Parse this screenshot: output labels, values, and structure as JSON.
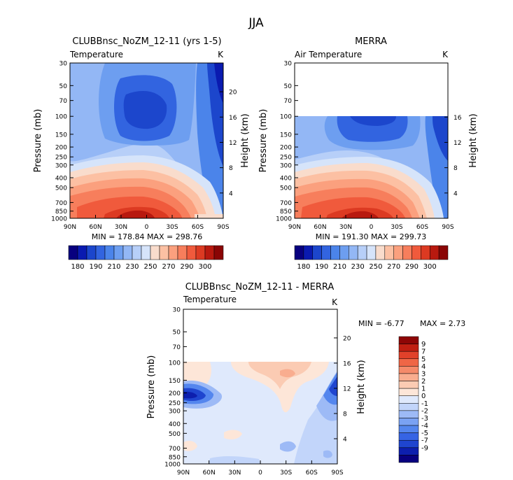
{
  "figure": {
    "title": "JJA"
  },
  "palette": {
    "abs": [
      "#08007f",
      "#0a1ab0",
      "#1c46cc",
      "#3264e0",
      "#4b84ea",
      "#6d9ef0",
      "#93b7f5",
      "#b7cff8",
      "#d6e4fa",
      "#f9dccc",
      "#fcc0a3",
      "#fba07e",
      "#f77e5c",
      "#f05a3c",
      "#dc3a22",
      "#b8190f",
      "#8a0505"
    ],
    "diff": [
      "#08007f",
      "#0d1fae",
      "#1f45cf",
      "#3664e4",
      "#5486ee",
      "#7aa2f3",
      "#9dbaf6",
      "#c2d5fa",
      "#dfe9fc",
      "#fde6d8",
      "#fbcbb3",
      "#f9ad8f",
      "#f58a6a",
      "#ef6646",
      "#e1412a",
      "#c01f12",
      "#8e0606"
    ]
  },
  "chart_data": [
    {
      "type": "heatmap",
      "title": "CLUBBnsc_NoZM_12-11 (yrs 1-5)",
      "subtitle": "Temperature",
      "units": "K",
      "ylabel": "Pressure (mb)",
      "ylabel_right": "Height (km)",
      "x_ticks": [
        "90N",
        "60N",
        "30N",
        "0",
        "30S",
        "60S",
        "90S"
      ],
      "y_ticks": [
        "30",
        "50",
        "70",
        "100",
        "150",
        "200",
        "250",
        "300",
        "400",
        "500",
        "700",
        "850",
        "1000"
      ],
      "height_ticks": [
        "20",
        "16",
        "12",
        "8",
        "4"
      ],
      "stats": "MIN = 178.84   MAX = 298.76",
      "colorbar_labels": [
        "180",
        "190",
        "210",
        "230",
        "250",
        "270",
        "290",
        "300"
      ],
      "x_range": [
        90,
        -90
      ],
      "p_range": [
        30,
        1000
      ]
    },
    {
      "type": "heatmap",
      "title": "MERRA",
      "subtitle": "Air Temperature",
      "units": "K",
      "ylabel": "Pressure (mb)",
      "ylabel_right": "Height (km)",
      "x_ticks": [
        "90N",
        "60N",
        "30N",
        "0",
        "30S",
        "60S",
        "90S"
      ],
      "y_ticks": [
        "30",
        "50",
        "70",
        "100",
        "150",
        "200",
        "250",
        "300",
        "400",
        "500",
        "700",
        "850",
        "1000"
      ],
      "height_ticks": [
        "16",
        "12",
        "8",
        "4"
      ],
      "stats": "MIN = 191.30   MAX = 299.73",
      "colorbar_labels": [
        "180",
        "190",
        "210",
        "230",
        "250",
        "270",
        "290",
        "300"
      ],
      "x_range": [
        90,
        -90
      ],
      "p_range": [
        30,
        1000
      ]
    },
    {
      "type": "heatmap",
      "title": "CLUBBnsc_NoZM_12-11 - MERRA",
      "subtitle": "Temperature",
      "units": "K",
      "ylabel": "Pressure (mb)",
      "ylabel_right": "Height (km)",
      "x_ticks": [
        "90N",
        "60N",
        "30N",
        "0",
        "30S",
        "60S",
        "90S"
      ],
      "y_ticks": [
        "30",
        "50",
        "70",
        "100",
        "150",
        "200",
        "250",
        "300",
        "400",
        "500",
        "700",
        "850",
        "1000"
      ],
      "height_ticks": [
        "20",
        "16",
        "12",
        "8",
        "4"
      ],
      "stats_min": "MIN =   -6.77",
      "stats_max": "MAX =    2.73",
      "colorbar_labels": [
        "9",
        "7",
        "5",
        "4",
        "3",
        "2",
        "1",
        "0",
        "-1",
        "-2",
        "-3",
        "-4",
        "-5",
        "-7",
        "-9"
      ],
      "x_range": [
        90,
        -90
      ],
      "p_range": [
        30,
        1000
      ]
    }
  ]
}
